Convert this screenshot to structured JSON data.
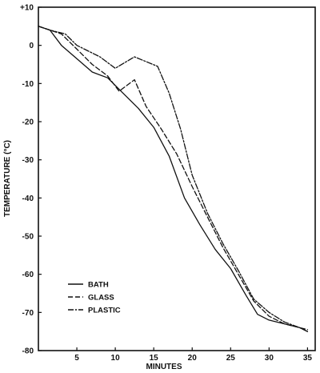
{
  "chart_data": {
    "type": "line",
    "title": "",
    "xlabel": "MINUTES",
    "ylabel": "TEMPERATURE (°C)",
    "xlim": [
      0,
      36
    ],
    "ylim": [
      -80,
      10
    ],
    "grid": false,
    "legend_position": "bottom-left",
    "x_ticks": [
      5,
      10,
      15,
      20,
      25,
      30,
      35
    ],
    "x_tick_labels": [
      "5",
      "10",
      "15",
      "20",
      "25",
      "30",
      "35"
    ],
    "y_ticks": [
      10,
      0,
      -10,
      -20,
      -30,
      -40,
      -50,
      -60,
      -70,
      -80
    ],
    "y_tick_labels": [
      "+10",
      "0",
      "-10",
      "-20",
      "-30",
      "-40",
      "-50",
      "-60",
      "-70",
      "-80"
    ],
    "series": [
      {
        "name": "BATH",
        "dash": "solid",
        "x": [
          0,
          1.5,
          3,
          5,
          7,
          9,
          11,
          13,
          15,
          17,
          19,
          21,
          23,
          25,
          27,
          28.5,
          30,
          32,
          34,
          35
        ],
        "y": [
          5,
          4,
          0,
          -3.5,
          -7,
          -8.5,
          -12.5,
          -16.5,
          -21.5,
          -29,
          -40,
          -47,
          -53.5,
          -58.5,
          -65.5,
          -70.5,
          -72,
          -73,
          -74,
          -75
        ]
      },
      {
        "name": "GLASS",
        "dash": "dashed",
        "x": [
          0,
          1.5,
          3,
          5,
          7,
          9,
          10.5,
          12.5,
          14,
          16,
          18,
          20,
          22,
          24,
          26,
          28,
          30,
          32,
          34,
          35
        ],
        "y": [
          5,
          4,
          3,
          -1,
          -5,
          -8,
          -12,
          -9,
          -16,
          -22,
          -28.5,
          -37,
          -45,
          -53,
          -60,
          -67,
          -71,
          -73,
          -74,
          -74.5
        ]
      },
      {
        "name": "PLASTIC",
        "dash": "dash-dot",
        "x": [
          0,
          1.5,
          3.5,
          5,
          8,
          10,
          12.5,
          15.5,
          17,
          18.5,
          20,
          22,
          24,
          26,
          28,
          30,
          32,
          34,
          35
        ],
        "y": [
          5,
          4,
          3,
          0,
          -3,
          -6,
          -3,
          -5.5,
          -12.5,
          -22,
          -34,
          -44,
          -52,
          -59,
          -66.5,
          -70,
          -72.5,
          -74,
          -75
        ]
      }
    ]
  },
  "legend": {
    "items": [
      "BATH",
      "GLASS",
      "PLASTIC"
    ]
  }
}
